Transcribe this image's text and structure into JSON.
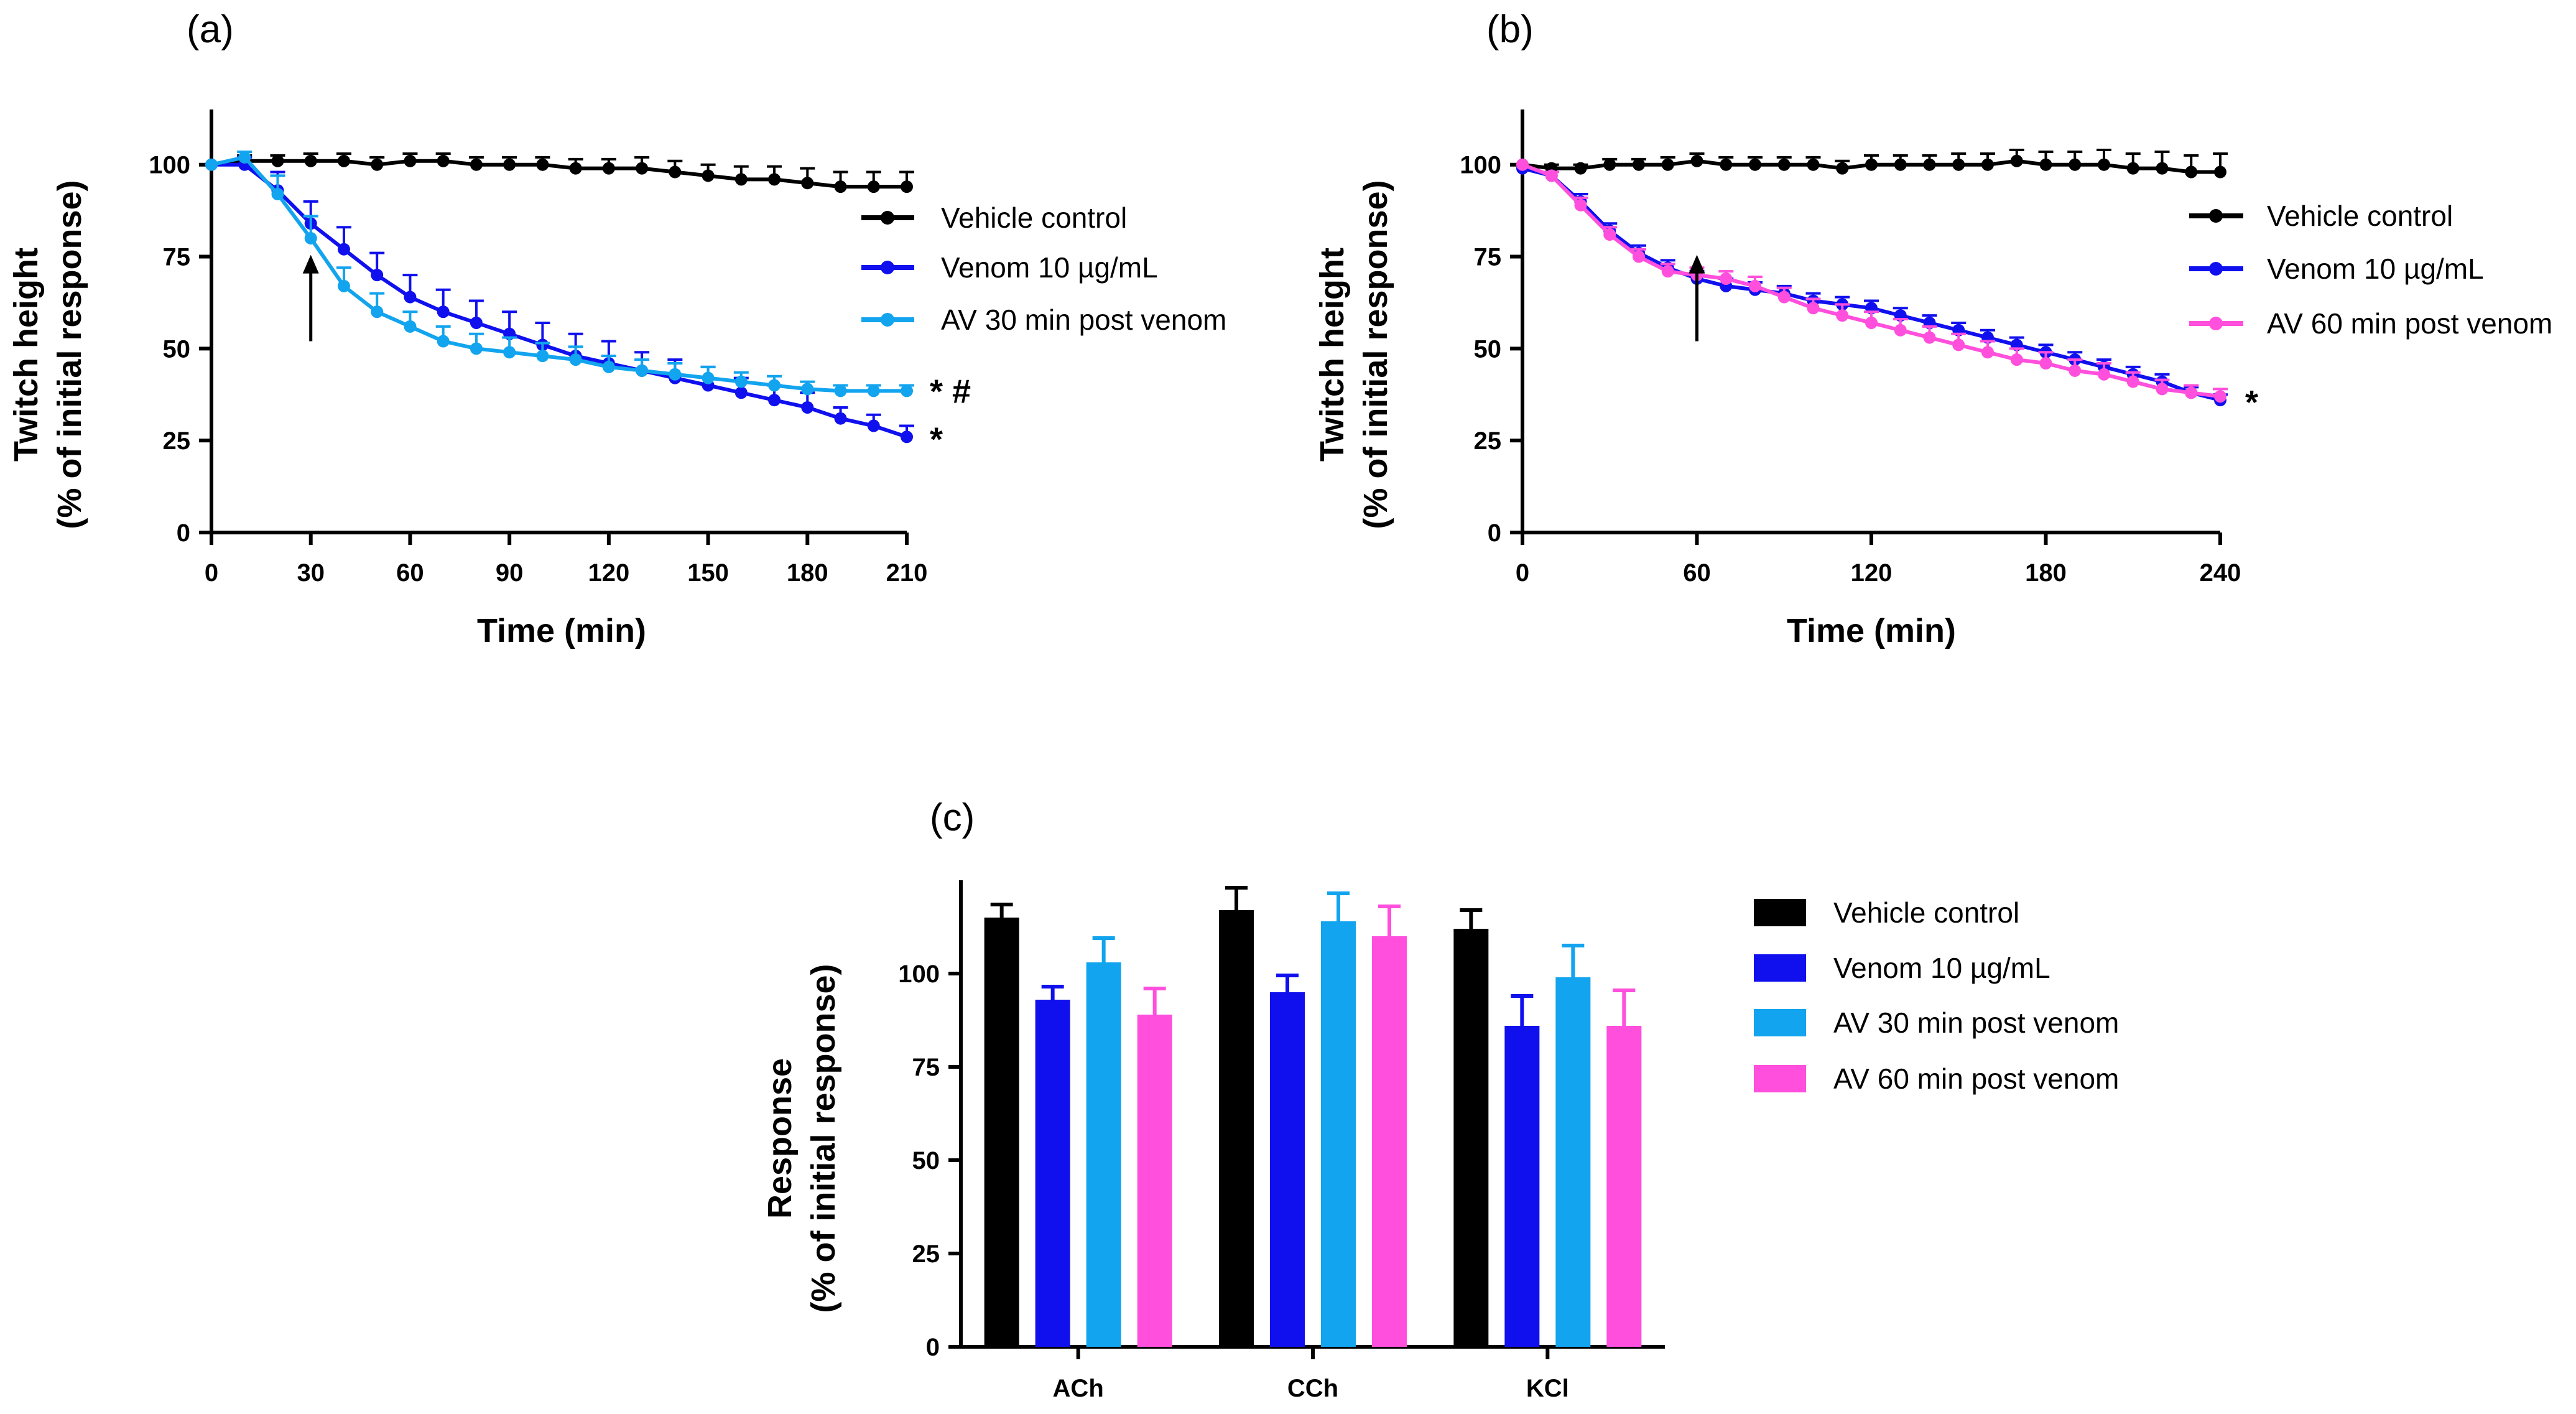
{
  "colors": {
    "vehicle": "#000000",
    "venom": "#1010ee",
    "av30": "#12a4ee",
    "av60": "#ff4fdc"
  },
  "chart_data": [
    {
      "id": "a",
      "panel_label": "(a)",
      "type": "line",
      "xlabel": "Time (min)",
      "ylabel_line1": "Twitch height",
      "ylabel_line2": "(% of initial response)",
      "xlim": [
        0,
        210
      ],
      "ylim": [
        0,
        115
      ],
      "xticks": [
        "0",
        "30",
        "60",
        "90",
        "120",
        "150",
        "180",
        "210"
      ],
      "yticks": [
        "0",
        "25",
        "50",
        "75",
        "100"
      ],
      "arrow_at_x": 30,
      "legend": [
        "Vehicle control",
        "Venom 10 µg/mL",
        "AV 30 min post venom"
      ],
      "series": [
        {
          "name": "Vehicle control",
          "color": "#000000",
          "x": [
            0,
            10,
            20,
            30,
            40,
            50,
            60,
            70,
            80,
            90,
            100,
            110,
            120,
            130,
            140,
            150,
            160,
            170,
            180,
            190,
            200,
            210
          ],
          "values": [
            100,
            101,
            101,
            101,
            101,
            100,
            101,
            101,
            100,
            100,
            100,
            99,
            99,
            99,
            98,
            97,
            96,
            96,
            95,
            94,
            94,
            94
          ],
          "err": [
            0,
            1.5,
            1.5,
            2,
            2,
            2,
            2,
            2,
            2,
            2,
            2,
            2.5,
            2.5,
            3,
            3,
            3,
            3.5,
            3.5,
            4,
            4,
            4,
            4
          ]
        },
        {
          "name": "Venom 10 µg/mL",
          "color": "#1010ee",
          "x": [
            0,
            10,
            20,
            30,
            40,
            50,
            60,
            70,
            80,
            90,
            100,
            110,
            120,
            130,
            140,
            150,
            160,
            170,
            180,
            190,
            200,
            210
          ],
          "values": [
            100,
            100,
            93,
            84,
            77,
            70,
            64,
            60,
            57,
            54,
            51,
            48,
            46,
            44,
            42,
            40,
            38,
            36,
            34,
            31,
            29,
            26
          ],
          "err": [
            0,
            2,
            5,
            6,
            6,
            6,
            6,
            6,
            6,
            6,
            6,
            6,
            6,
            5,
            5,
            5,
            4,
            4,
            4,
            3,
            3,
            3
          ]
        },
        {
          "name": "AV 30 min post venom",
          "color": "#12a4ee",
          "x": [
            0,
            10,
            20,
            30,
            40,
            50,
            60,
            70,
            80,
            90,
            100,
            110,
            120,
            130,
            140,
            150,
            160,
            170,
            180,
            190,
            200,
            210
          ],
          "values": [
            100,
            102,
            92,
            80,
            67,
            60,
            56,
            52,
            50,
            49,
            48,
            47,
            45,
            44,
            43,
            42,
            41,
            40,
            39,
            38.5,
            38.5,
            38.5
          ],
          "err": [
            0,
            1.5,
            5,
            6,
            5,
            5,
            4,
            4,
            4,
            4,
            3.5,
            3.5,
            3,
            3,
            3,
            3,
            2.5,
            2.5,
            2,
            1.5,
            1.5,
            1.5
          ]
        }
      ],
      "significance": [
        {
          "label": "* #",
          "color": "#12a4ee",
          "y": 39
        },
        {
          "label": "*",
          "color": "#1010ee",
          "y": 26
        }
      ]
    },
    {
      "id": "b",
      "panel_label": "(b)",
      "type": "line",
      "xlabel": "Time (min)",
      "ylabel_line1": "Twitch height",
      "ylabel_line2": "(% of initial response)",
      "xlim": [
        0,
        240
      ],
      "ylim": [
        0,
        115
      ],
      "xticks": [
        "0",
        "60",
        "120",
        "180",
        "240"
      ],
      "yticks": [
        "0",
        "25",
        "50",
        "75",
        "100"
      ],
      "arrow_at_x": 60,
      "legend": [
        "Vehicle control",
        "Venom 10 µg/mL",
        "AV 60 min post venom"
      ],
      "series": [
        {
          "name": "Vehicle control",
          "color": "#000000",
          "x": [
            0,
            10,
            20,
            30,
            40,
            50,
            60,
            70,
            80,
            90,
            100,
            110,
            120,
            130,
            140,
            150,
            160,
            170,
            180,
            190,
            200,
            210,
            220,
            230,
            240
          ],
          "values": [
            100,
            99,
            99,
            100,
            100,
            100,
            101,
            100,
            100,
            100,
            100,
            99,
            100,
            100,
            100,
            100,
            100,
            101,
            100,
            100,
            100,
            99,
            99,
            98,
            98
          ],
          "err": [
            0,
            1,
            1,
            1.5,
            1.5,
            2,
            2,
            2,
            2,
            2,
            2,
            2,
            2.5,
            2.5,
            2.5,
            3,
            3,
            3,
            3.5,
            3.5,
            4,
            4,
            4.5,
            4.5,
            5
          ]
        },
        {
          "name": "Venom 10 µg/mL",
          "color": "#1010ee",
          "x": [
            0,
            10,
            20,
            30,
            40,
            50,
            60,
            70,
            80,
            90,
            100,
            110,
            120,
            130,
            140,
            150,
            160,
            170,
            180,
            190,
            200,
            210,
            220,
            230,
            240
          ],
          "values": [
            99,
            97,
            90,
            82,
            76,
            72,
            69,
            67,
            66,
            65,
            63,
            62,
            61,
            59,
            57,
            55,
            53,
            51,
            49,
            47,
            45,
            43,
            41,
            38,
            36
          ],
          "err": [
            0,
            1,
            2,
            2,
            2,
            2,
            2,
            2,
            2,
            2,
            2,
            2,
            2,
            2,
            2,
            2,
            2,
            2,
            2,
            2,
            2,
            2,
            2,
            1.5,
            1.5
          ]
        },
        {
          "name": "AV 60 min post venom",
          "color": "#ff4fdc",
          "x": [
            0,
            10,
            20,
            30,
            40,
            50,
            60,
            70,
            80,
            90,
            100,
            110,
            120,
            130,
            140,
            150,
            160,
            170,
            180,
            190,
            200,
            210,
            220,
            230,
            240
          ],
          "values": [
            100,
            97,
            89,
            81,
            75,
            71,
            70,
            69,
            67,
            64,
            61,
            59,
            57,
            55,
            53,
            51,
            49,
            47,
            46,
            44,
            43,
            41,
            39,
            38,
            37
          ],
          "err": [
            0,
            1,
            2,
            2,
            2,
            2,
            2,
            2,
            2.5,
            2.5,
            2.5,
            3,
            3,
            3,
            3,
            3,
            3,
            3,
            3,
            3,
            3,
            2.5,
            2.5,
            2,
            2
          ]
        }
      ],
      "significance": [
        {
          "label": "*",
          "color": "#000000",
          "y": 36
        }
      ]
    },
    {
      "id": "c",
      "panel_label": "(c)",
      "type": "bar",
      "xlabel": "",
      "ylabel_line1": "Response",
      "ylabel_line2": "(% of initial response)",
      "ylim": [
        0,
        125
      ],
      "yticks": [
        "0",
        "25",
        "50",
        "75",
        "100"
      ],
      "categories": [
        "ACh",
        "CCh",
        "KCl"
      ],
      "series": [
        {
          "name": "Vehicle control",
          "color": "#000000",
          "values": [
            115,
            117,
            112
          ],
          "err": [
            3.5,
            6,
            5
          ]
        },
        {
          "name": "Venom 10 µg/mL",
          "color": "#1010ee",
          "values": [
            93,
            95,
            86
          ],
          "err": [
            3.5,
            4.5,
            8
          ]
        },
        {
          "name": "AV 30 min post venom",
          "color": "#12a4ee",
          "values": [
            103,
            114,
            99
          ],
          "err": [
            6.5,
            7.5,
            8.5
          ]
        },
        {
          "name": "AV 60 min post venom",
          "color": "#ff4fdc",
          "values": [
            89,
            110,
            86
          ],
          "err": [
            7,
            8,
            9.5
          ]
        }
      ]
    }
  ]
}
